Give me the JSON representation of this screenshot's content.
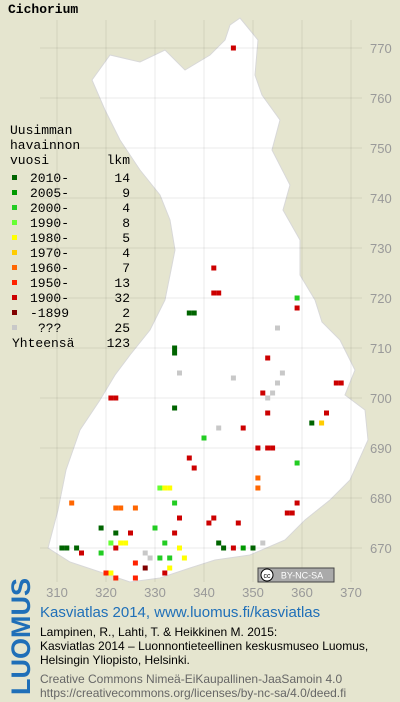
{
  "title": "Cichorium",
  "legend": {
    "heading": [
      "Uusimman",
      "havainnon",
      "vuosi"
    ],
    "count_heading": "lkm",
    "entries": [
      {
        "label": "2010-",
        "count": 14,
        "color": "#006400"
      },
      {
        "label": "2005-",
        "count": 9,
        "color": "#009900"
      },
      {
        "label": "2000-",
        "count": 4,
        "color": "#22cc22"
      },
      {
        "label": "1990-",
        "count": 8,
        "color": "#66ff33"
      },
      {
        "label": "1980-",
        "count": 5,
        "color": "#ffff00"
      },
      {
        "label": "1970-",
        "count": 4,
        "color": "#ffcc00"
      },
      {
        "label": "1960-",
        "count": 7,
        "color": "#ff6600"
      },
      {
        "label": "1950-",
        "count": 13,
        "color": "#ff2200"
      },
      {
        "label": "1900-",
        "count": 32,
        "color": "#cc0000"
      },
      {
        "label": "-1899",
        "count": 2,
        "color": "#800000"
      },
      {
        "label": "???",
        "count": 25,
        "color": "#c8c8c8"
      }
    ],
    "total_label": "Yhteensä",
    "total": 123
  },
  "map": {
    "xlim": [
      310,
      370
    ],
    "xticks": [
      310,
      320,
      330,
      340,
      350,
      360,
      370
    ],
    "yticks": [
      770,
      760,
      750,
      740,
      730,
      720,
      710,
      700,
      690,
      680,
      670
    ],
    "records": [
      [
        346,
        770,
        8
      ],
      [
        342,
        726,
        8
      ],
      [
        342,
        721,
        8
      ],
      [
        343,
        721,
        8
      ],
      [
        337,
        717,
        0
      ],
      [
        338,
        717,
        0
      ],
      [
        359,
        720,
        2
      ],
      [
        359,
        718,
        8
      ],
      [
        355,
        714,
        10
      ],
      [
        334,
        710,
        0
      ],
      [
        334,
        709,
        0
      ],
      [
        353,
        708,
        8
      ],
      [
        335,
        705,
        10
      ],
      [
        321,
        700,
        8
      ],
      [
        322,
        700,
        8
      ],
      [
        346,
        704,
        10
      ],
      [
        356,
        705,
        10
      ],
      [
        355,
        703,
        10
      ],
      [
        354,
        701,
        10
      ],
      [
        353,
        700,
        10
      ],
      [
        352,
        701,
        8
      ],
      [
        367,
        703,
        8
      ],
      [
        368,
        703,
        8
      ],
      [
        334,
        698,
        0
      ],
      [
        353,
        697,
        8
      ],
      [
        362,
        695,
        0
      ],
      [
        364,
        695,
        5
      ],
      [
        365,
        697,
        8
      ],
      [
        348,
        694,
        8
      ],
      [
        340,
        692,
        2
      ],
      [
        343,
        694,
        10
      ],
      [
        351,
        690,
        8
      ],
      [
        353,
        690,
        8
      ],
      [
        354,
        690,
        8
      ],
      [
        337,
        688,
        8
      ],
      [
        359,
        687,
        2
      ],
      [
        338,
        686,
        8
      ],
      [
        351,
        684,
        6
      ],
      [
        351,
        682,
        6
      ],
      [
        331,
        682,
        3
      ],
      [
        332,
        682,
        4
      ],
      [
        333,
        682,
        4
      ],
      [
        326,
        678,
        6
      ],
      [
        322,
        678,
        6
      ],
      [
        323,
        678,
        6
      ],
      [
        313,
        679,
        6
      ],
      [
        334,
        679,
        2
      ],
      [
        357,
        677,
        8
      ],
      [
        358,
        677,
        8
      ],
      [
        359,
        679,
        8
      ],
      [
        335,
        676,
        8
      ],
      [
        342,
        676,
        8
      ],
      [
        341,
        675,
        8
      ],
      [
        347,
        675,
        8
      ],
      [
        330,
        674,
        2
      ],
      [
        319,
        674,
        0
      ],
      [
        322,
        673,
        0
      ],
      [
        325,
        673,
        8
      ],
      [
        334,
        673,
        8
      ],
      [
        343,
        671,
        0
      ],
      [
        344,
        670,
        0
      ],
      [
        346,
        670,
        8
      ],
      [
        348,
        670,
        1
      ],
      [
        350,
        670,
        0
      ],
      [
        352,
        671,
        10
      ],
      [
        311,
        670,
        0
      ],
      [
        312,
        670,
        0
      ],
      [
        314,
        670,
        0
      ],
      [
        321,
        671,
        3
      ],
      [
        323,
        671,
        4
      ],
      [
        324,
        671,
        4
      ],
      [
        332,
        671,
        2
      ],
      [
        315,
        669,
        8
      ],
      [
        319,
        669,
        2
      ],
      [
        322,
        670,
        8
      ],
      [
        328,
        669,
        10
      ],
      [
        331,
        668,
        2
      ],
      [
        333,
        668,
        2
      ],
      [
        335,
        670,
        4
      ],
      [
        336,
        668,
        4
      ],
      [
        326,
        667,
        7
      ],
      [
        329,
        668,
        10
      ],
      [
        328,
        666,
        9
      ],
      [
        321,
        665,
        4
      ],
      [
        322,
        664,
        7
      ],
      [
        320,
        665,
        7
      ],
      [
        333,
        666,
        4
      ],
      [
        332,
        665,
        8
      ],
      [
        326,
        664,
        7
      ]
    ]
  },
  "cc_badge": {
    "icon": "cc",
    "label": "BY-NC-SA"
  },
  "footer": {
    "logo": "LUOMUS",
    "headline": "Kasviatlas 2014, www.luomus.fi/kasviatlas",
    "citation": [
      "Lampinen, R., Lahti, T. & Heikkinen M. 2015:",
      "Kasviatlas 2014 – Luonnontieteellinen keskusmuseo Luomus,",
      "Helsingin Yliopisto, Helsinki."
    ],
    "license": [
      "Creative Commons Nimeä-EiKaupallinen-JaaSamoin 4.0",
      "https://creativecommons.org/licenses/by-nc-sa/4.0/deed.fi"
    ]
  }
}
